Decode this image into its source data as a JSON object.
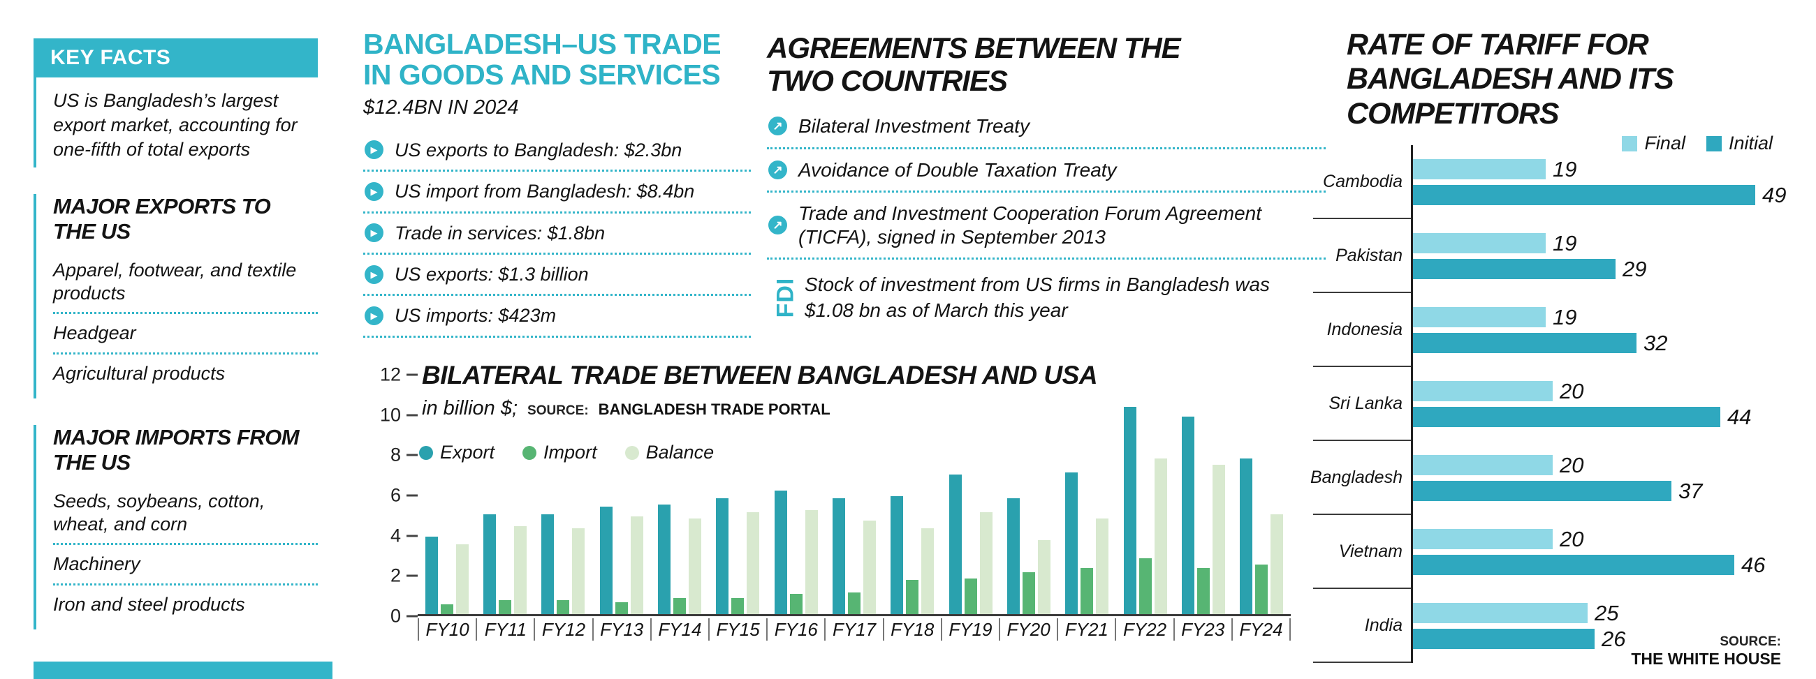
{
  "colors": {
    "accent": "#33b5c9",
    "text": "#141414",
    "export_bar": "#2aa1ae",
    "import_bar": "#57b573",
    "balance_bar": "#d8e9cf",
    "tariff_final": "#8fd8e6",
    "tariff_initial": "#2fa8bf"
  },
  "key_facts": {
    "title": "KEY FACTS",
    "intro": "US is Bangladesh’s largest export market, accounting for one-fifth of total exports",
    "sections": [
      {
        "title": "MAJOR EXPORTS TO THE US",
        "items": [
          "Apparel, footwear, and textile products",
          "Headgear",
          "Agricultural products"
        ]
      },
      {
        "title": "MAJOR IMPORTS FROM THE US",
        "items": [
          "Seeds, soybeans, cotton, wheat, and corn",
          "Machinery",
          "Iron and steel products"
        ]
      }
    ]
  },
  "trade_goods_services": {
    "title": "BANGLADESH–US TRADE IN GOODS AND SERVICES",
    "subtitle": "$12.4BN IN 2024",
    "items": [
      "US exports to Bangladesh: $2.3bn",
      "US import from Bangladesh: $8.4bn",
      "Trade in services: $1.8bn",
      "US exports: $1.3 billion",
      "US imports: $423m"
    ]
  },
  "agreements": {
    "title": "AGREEMENTS BETWEEN THE TWO COUNTRIES",
    "items": [
      "Bilateral Investment Treaty",
      "Avoidance of Double Taxation Treaty",
      "Trade and Investment Cooperation Forum Agreement (TICFA), signed in September 2013"
    ],
    "fdi_label": "FDI",
    "fdi_text": "Stock of investment from US firms in Bangladesh was $1.08 bn as of March this year"
  },
  "chart_data": [
    {
      "type": "bar",
      "title": "BILATERAL TRADE BETWEEN BANGLADESH AND USA",
      "subtitle": "in billion $;",
      "source_label": "SOURCE:",
      "source": "BANGLADESH TRADE PORTAL",
      "categories": [
        "FY10",
        "FY11",
        "FY12",
        "FY13",
        "FY14",
        "FY15",
        "FY16",
        "FY17",
        "FY18",
        "FY19",
        "FY20",
        "FY21",
        "FY22",
        "FY23",
        "FY24"
      ],
      "series": [
        {
          "name": "Export",
          "color": "#2aa1ae",
          "values": [
            3.9,
            5.0,
            5.0,
            5.4,
            5.5,
            5.8,
            6.2,
            5.8,
            5.9,
            7.0,
            5.8,
            7.1,
            10.4,
            9.9,
            7.8
          ]
        },
        {
          "name": "Import",
          "color": "#57b573",
          "values": [
            0.5,
            0.7,
            0.7,
            0.6,
            0.8,
            0.8,
            1.0,
            1.1,
            1.7,
            1.8,
            2.1,
            2.3,
            2.8,
            2.3,
            2.5
          ]
        },
        {
          "name": "Balance",
          "color": "#d8e9cf",
          "values": [
            3.5,
            4.4,
            4.3,
            4.9,
            4.8,
            5.1,
            5.2,
            4.7,
            4.3,
            5.1,
            3.7,
            4.8,
            7.8,
            7.5,
            5.0
          ]
        }
      ],
      "ylim": [
        0,
        12
      ],
      "yticks": [
        0,
        2,
        4,
        6,
        8,
        10,
        12
      ],
      "legend_position": "top-left",
      "grid": false
    },
    {
      "type": "bar-horizontal",
      "title": "RATE OF TARIFF FOR BANGLADESH AND ITS COMPETITORS",
      "categories": [
        "Cambodia",
        "Pakistan",
        "Indonesia",
        "Sri Lanka",
        "Bangladesh",
        "Vietnam",
        "India"
      ],
      "series": [
        {
          "name": "Final",
          "color": "#8fd8e6",
          "values": [
            19,
            19,
            19,
            20,
            20,
            20,
            25
          ]
        },
        {
          "name": "Initial",
          "color": "#2fa8bf",
          "values": [
            49,
            29,
            32,
            44,
            37,
            46,
            26
          ]
        }
      ],
      "xlim": [
        0,
        50
      ],
      "legend_position": "top-right",
      "grid": false,
      "source_label": "SOURCE:",
      "source": "THE WHITE HOUSE"
    }
  ]
}
